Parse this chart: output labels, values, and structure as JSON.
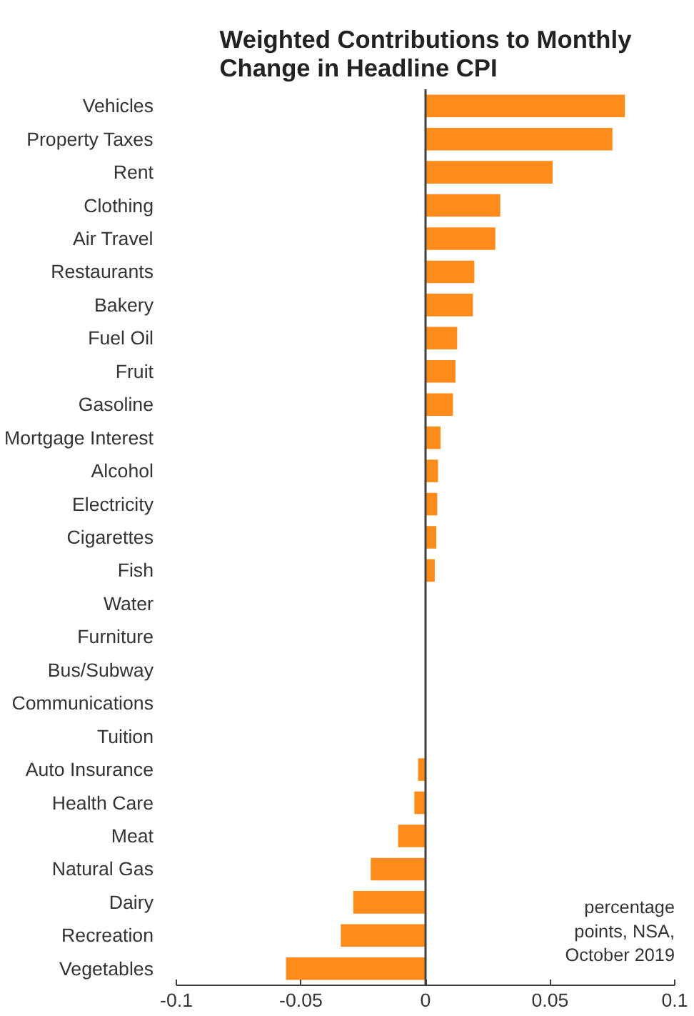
{
  "chart_data": {
    "type": "bar",
    "orientation": "horizontal",
    "title": "Weighted Contributions to Monthly\nChange in Headline CPI",
    "categories": [
      "Vehicles",
      "Property Taxes",
      "Rent",
      "Clothing",
      "Air Travel",
      "Restaurants",
      "Bakery",
      "Fuel Oil",
      "Fruit",
      "Gasoline",
      "Mortgage Interest",
      "Alcohol",
      "Electricity",
      "Cigarettes",
      "Fish",
      "Water",
      "Furniture",
      "Bus/Subway",
      "Communications",
      "Tuition",
      "Auto Insurance",
      "Health Care",
      "Meat",
      "Natural Gas",
      "Dairy",
      "Recreation",
      "Vegetables"
    ],
    "values": [
      0.08,
      0.075,
      0.051,
      0.03,
      0.028,
      0.0196,
      0.019,
      0.0127,
      0.012,
      0.011,
      0.006,
      0.005,
      0.0047,
      0.0043,
      0.0037,
      0,
      0,
      0,
      0,
      0,
      -0.003,
      -0.0045,
      -0.011,
      -0.022,
      -0.029,
      -0.034,
      -0.056
    ],
    "color": "#ff8c1a",
    "xlim": [
      -0.1,
      0.1
    ],
    "xticks": [
      -0.1,
      -0.05,
      0,
      0.05,
      0.1
    ],
    "grid": false,
    "ref_lines": [
      {
        "axis": "x",
        "value": 0,
        "color": "#404040"
      }
    ],
    "annotations": [
      "percentage\npoints, NSA,\nOctober 2019"
    ]
  }
}
